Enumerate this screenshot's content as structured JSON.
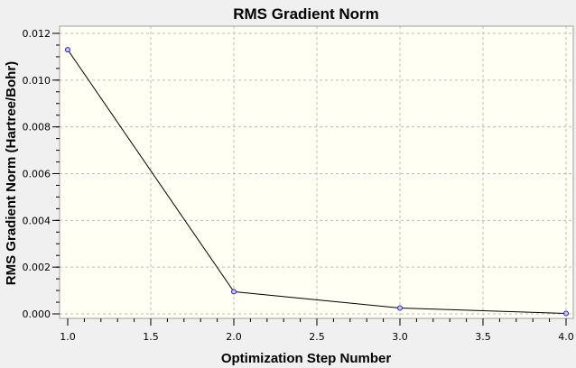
{
  "chart_data": {
    "type": "line",
    "title": "RMS Gradient Norm",
    "xlabel": "Optimization Step Number",
    "ylabel": "RMS Gradient Norm (Hartree/Bohr)",
    "x": [
      1,
      2,
      3,
      4
    ],
    "series": [
      {
        "values": [
          0.0113,
          0.00095,
          0.00025,
          2e-05
        ]
      }
    ],
    "xlim": [
      1.0,
      4.0
    ],
    "ylim": [
      0.0,
      0.012
    ],
    "xticks": [
      "1.0",
      "1.5",
      "2.0",
      "2.5",
      "3.0",
      "3.5",
      "4.0"
    ],
    "yticks": [
      "0.000",
      "0.002",
      "0.004",
      "0.006",
      "0.008",
      "0.010",
      "0.012"
    ],
    "grid": true,
    "colors": {
      "plot_background": "#fffff4",
      "outer_background": "#f0f0f0",
      "line": "#000000",
      "marker_edge": "#1a1aff",
      "marker_fill": "#c8c8ff",
      "grid": "#bcbcbc"
    }
  }
}
